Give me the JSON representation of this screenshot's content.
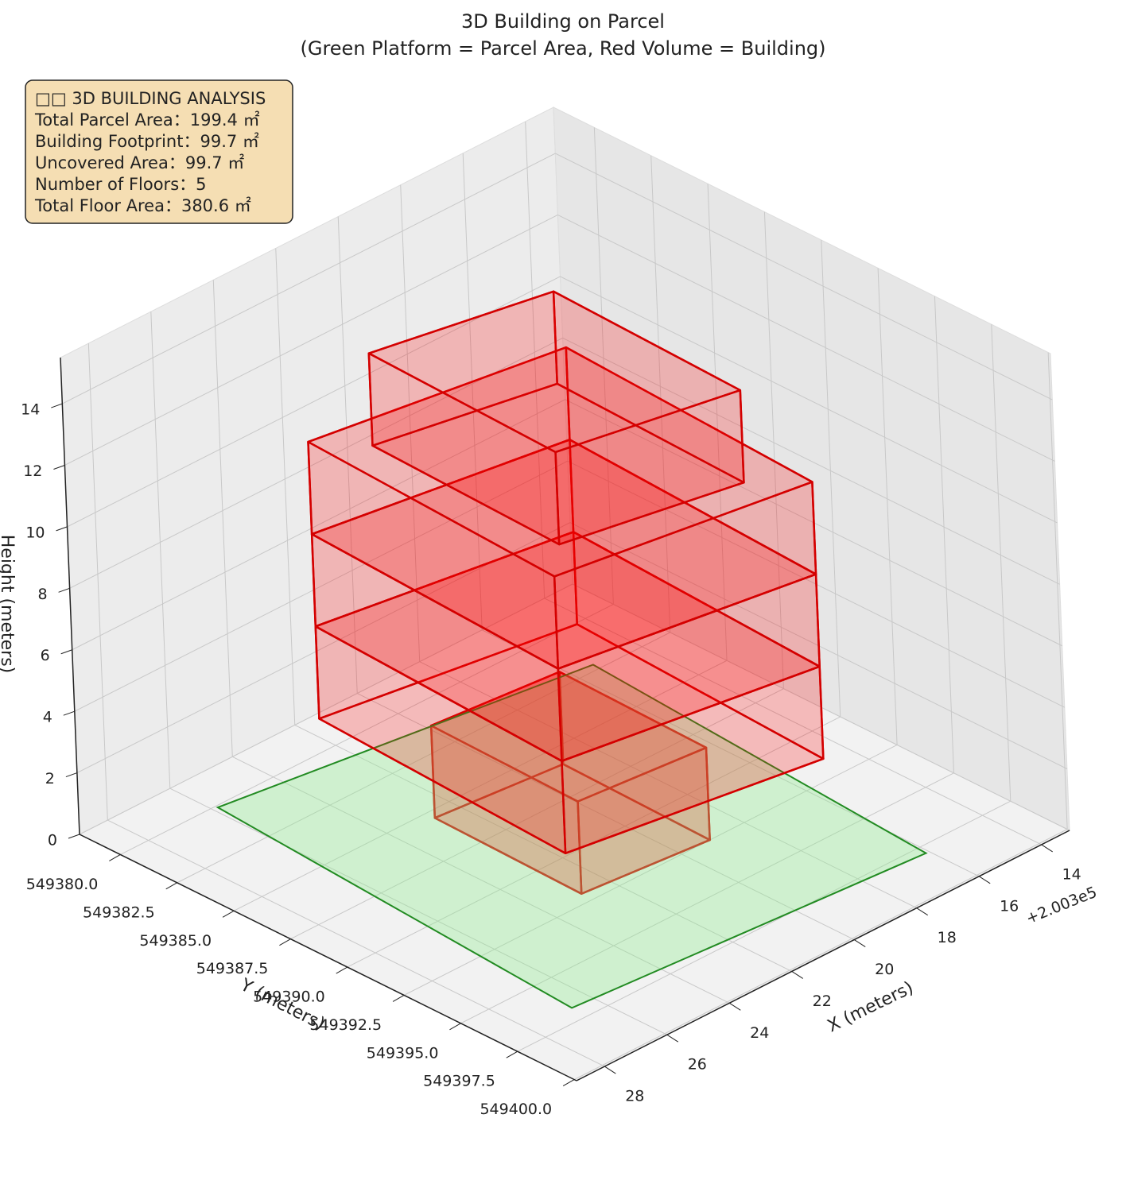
{
  "chart_data": {
    "type": "box3d",
    "title": "3D Building on Parcel",
    "subtitle": "(Green Platform = Parcel Area, Red Volume = Building)",
    "xlabel": "X (meters)",
    "ylabel": "Y (meters)",
    "zlabel": "Height (meters)",
    "x_offset_label": "+2.003e5",
    "xlim": [
      13.1,
      28.9
    ],
    "ylim": [
      549378.2,
      549400.1
    ],
    "zlim": [
      0,
      15.5
    ],
    "xticks": [
      14,
      16,
      18,
      20,
      22,
      24,
      26,
      28
    ],
    "yticks": [
      {
        "value": 549380,
        "label": "549380.0"
      },
      {
        "value": 549382.5,
        "label": "549382.5"
      },
      {
        "value": 549385,
        "label": "549385.0"
      },
      {
        "value": 549387.5,
        "label": "549387.5"
      },
      {
        "value": 549390,
        "label": "549390.0"
      },
      {
        "value": 549392.5,
        "label": "549392.5"
      },
      {
        "value": 549395,
        "label": "549395.0"
      },
      {
        "value": 549397.5,
        "label": "549397.5"
      },
      {
        "value": 549400,
        "label": "549400.0"
      }
    ],
    "zticks": [
      0,
      2,
      4,
      6,
      8,
      10,
      12,
      14
    ],
    "grid": true,
    "parcel": {
      "x": [
        25.85,
        26.65,
        16.1,
        15.35
      ],
      "y": [
        549380.1,
        549396.8,
        549397.9,
        549382.2
      ],
      "color": "#90ee90",
      "edge_color": "#228b22"
    },
    "building_color": "#ff0000",
    "building_edge_color": "#d40000",
    "floors": [
      {
        "x": [
          22.75,
          22.85,
          19.1,
          19.0
        ],
        "y": [
          549385.4,
          549392.0,
          549392.5,
          549385.9
        ],
        "z": [
          0,
          3
        ]
      },
      {
        "x": [
          24.3,
          24.7,
          17.6,
          17.2
        ],
        "y": [
          549382.6,
          549394.0,
          549395.6,
          549384.2
        ],
        "z": [
          3,
          6
        ]
      },
      {
        "x": [
          24.3,
          24.7,
          17.6,
          17.2
        ],
        "y": [
          549382.6,
          549394.0,
          549395.6,
          549384.2
        ],
        "z": [
          6,
          9
        ]
      },
      {
        "x": [
          24.3,
          24.7,
          17.6,
          17.2
        ],
        "y": [
          549382.6,
          549394.0,
          549395.6,
          549384.2
        ],
        "z": [
          9,
          12
        ]
      },
      {
        "x": [
          23.4,
          23.6,
          18.7,
          18.5
        ],
        "y": [
          549384.2,
          549392.7,
          549394.1,
          549385.6
        ],
        "z": [
          12,
          15
        ]
      }
    ],
    "info_box": [
      "□□ 3D BUILDING ANALYSIS",
      "Total Parcel Area：199.4 ㎡",
      "Building Footprint：99.7 ㎡",
      "Uncovered Area：99.7 ㎡",
      "Number of Floors：5",
      "Total Floor Area：380.6 ㎡"
    ]
  }
}
